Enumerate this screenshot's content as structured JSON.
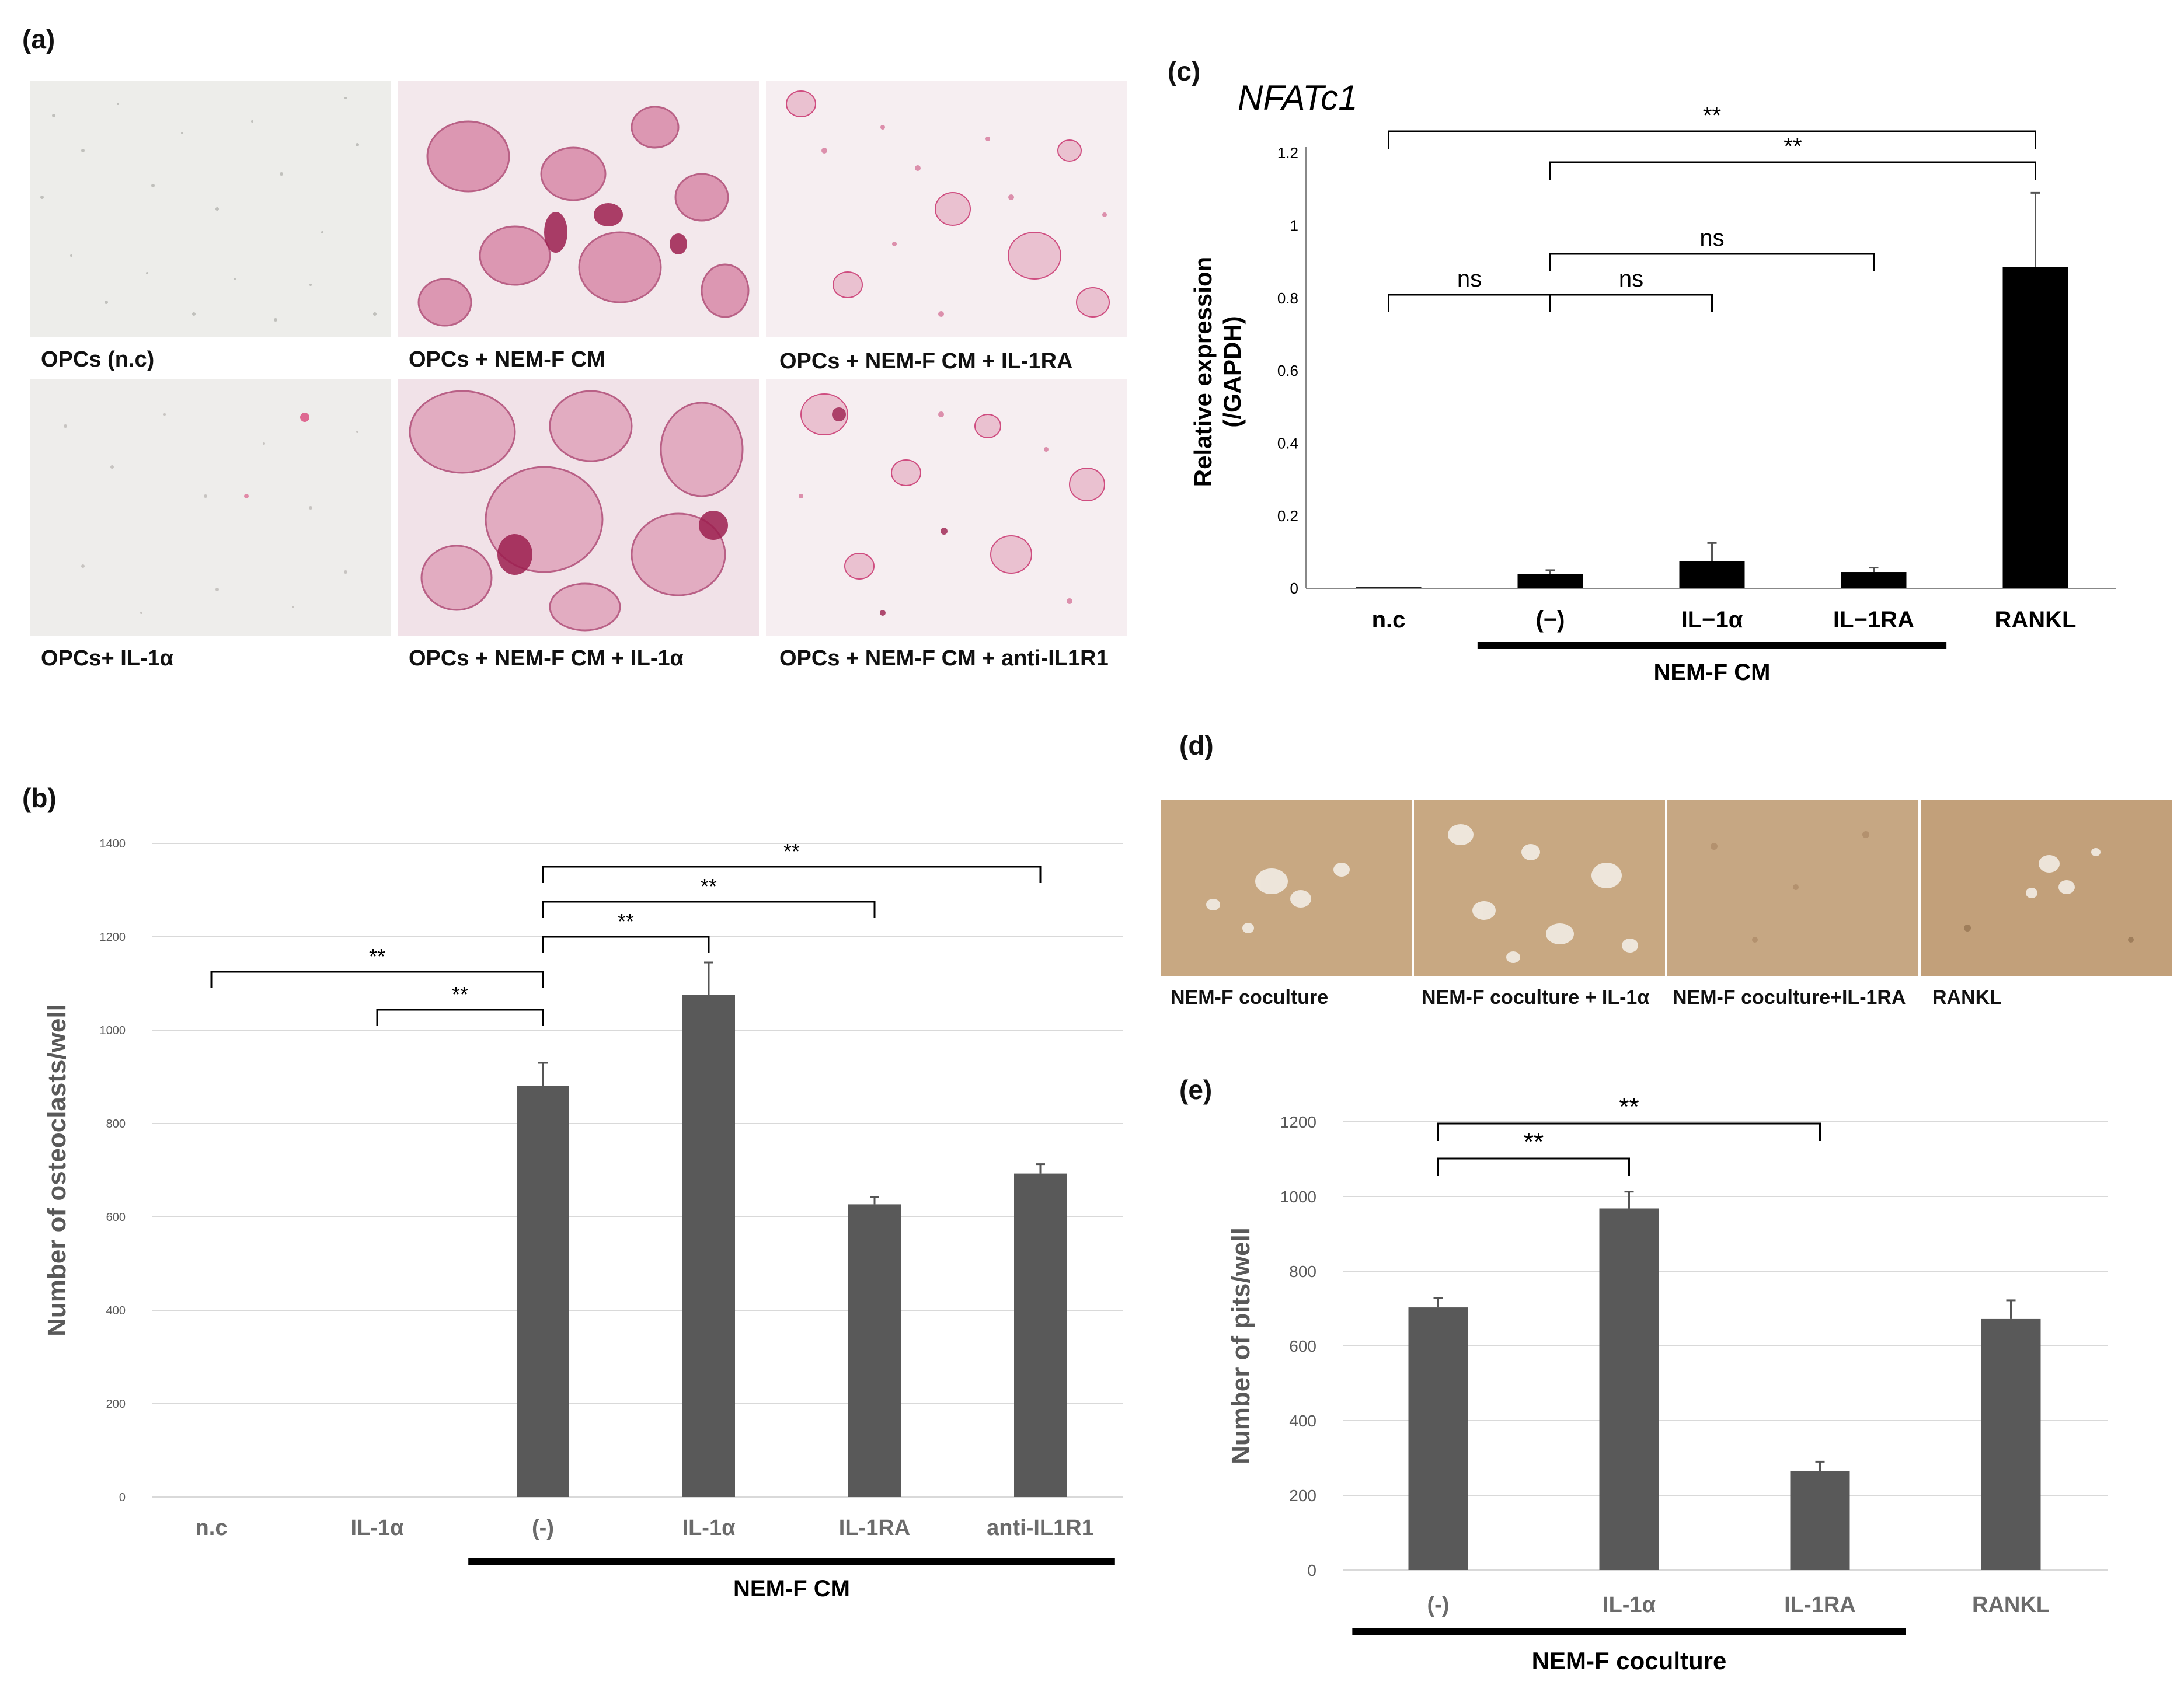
{
  "panels": {
    "a": {
      "label": "(a)",
      "captions": [
        "OPCs (n.c)",
        "OPCs + NEM-F CM",
        "OPCs + NEM-F CM + IL-1RA",
        "OPCs+ IL-1α",
        "OPCs + NEM-F CM + IL-1α",
        "OPCs + NEM-F CM + anti-IL1R1"
      ]
    },
    "d": {
      "label": "(d)",
      "captions": [
        "NEM-F coculture",
        "NEM-F coculture + IL-1α",
        "NEM-F coculture+IL-1RA",
        "RANKL"
      ]
    }
  },
  "colors": {
    "gray_bar": "#595959",
    "black_bar": "#000000",
    "grid": "#d9d9d9",
    "trap_pink": "#c2185b",
    "dentin": "#c8a882"
  },
  "chart_data": [
    {
      "id": "b",
      "panel_label": "(b)",
      "type": "bar",
      "ylabel": "Number of osteoclasts/well",
      "categories": [
        "n.c",
        "IL-1α",
        "(-)",
        "IL-1α",
        "IL-1RA",
        "anti-IL1R1"
      ],
      "values": [
        0,
        0,
        880,
        1075,
        627,
        693
      ],
      "errors": [
        0,
        0,
        50,
        70,
        15,
        20
      ],
      "ylim": [
        0,
        1400
      ],
      "yticks": [
        "0",
        "200",
        "400",
        "600",
        "800",
        "1000",
        "1200",
        "1400"
      ],
      "grid": true,
      "group_label": "NEM-F CM",
      "group_span": [
        2,
        5
      ],
      "significance": [
        {
          "from": 0,
          "to": 2,
          "text": "**"
        },
        {
          "from": 1,
          "to": 2,
          "text": "**"
        },
        {
          "from": 2,
          "to": 3,
          "text": "**"
        },
        {
          "from": 2,
          "to": 4,
          "text": "**"
        },
        {
          "from": 2,
          "to": 5,
          "text": "**"
        }
      ]
    },
    {
      "id": "c",
      "panel_label": "(c)",
      "type": "bar",
      "title": "NFATc1",
      "ylabel": "Relative expression",
      "ylabel2": "(/GAPDH)",
      "categories": [
        "n.c",
        "(−)",
        "IL−1α",
        "IL−1RA",
        "RANKL"
      ],
      "values": [
        0.003,
        0.04,
        0.075,
        0.045,
        0.885
      ],
      "errors": [
        0,
        0.01,
        0.05,
        0.012,
        0.205
      ],
      "ylim": [
        0,
        1.2
      ],
      "yticks": [
        "0",
        "0.2",
        "0.4",
        "0.6",
        "0.8",
        "1",
        "1.2"
      ],
      "grid": false,
      "group_label": "NEM-F CM",
      "group_span": [
        1,
        3
      ],
      "significance": [
        {
          "from": 0,
          "to": 4,
          "text": "**"
        },
        {
          "from": 1,
          "to": 4,
          "text": "**"
        },
        {
          "from": 1,
          "to": 3,
          "text": "ns"
        },
        {
          "from": 0,
          "to": 1,
          "text": "ns"
        },
        {
          "from": 1,
          "to": 2,
          "text": "ns"
        }
      ]
    },
    {
      "id": "e",
      "panel_label": "(e)",
      "type": "bar",
      "ylabel": "Number of pits/well",
      "categories": [
        "(-)",
        "IL-1α",
        "IL-1RA",
        "RANKL"
      ],
      "values": [
        703,
        968,
        265,
        672
      ],
      "errors": [
        25,
        45,
        25,
        50
      ],
      "ylim": [
        0,
        1200
      ],
      "yticks": [
        "0",
        "200",
        "400",
        "600",
        "800",
        "1000",
        "1200"
      ],
      "grid": true,
      "group_label": "NEM-F coculture",
      "group_span": [
        0,
        2
      ],
      "significance": [
        {
          "from": 0,
          "to": 1,
          "text": "**"
        },
        {
          "from": 0,
          "to": 2,
          "text": "**"
        }
      ]
    }
  ]
}
